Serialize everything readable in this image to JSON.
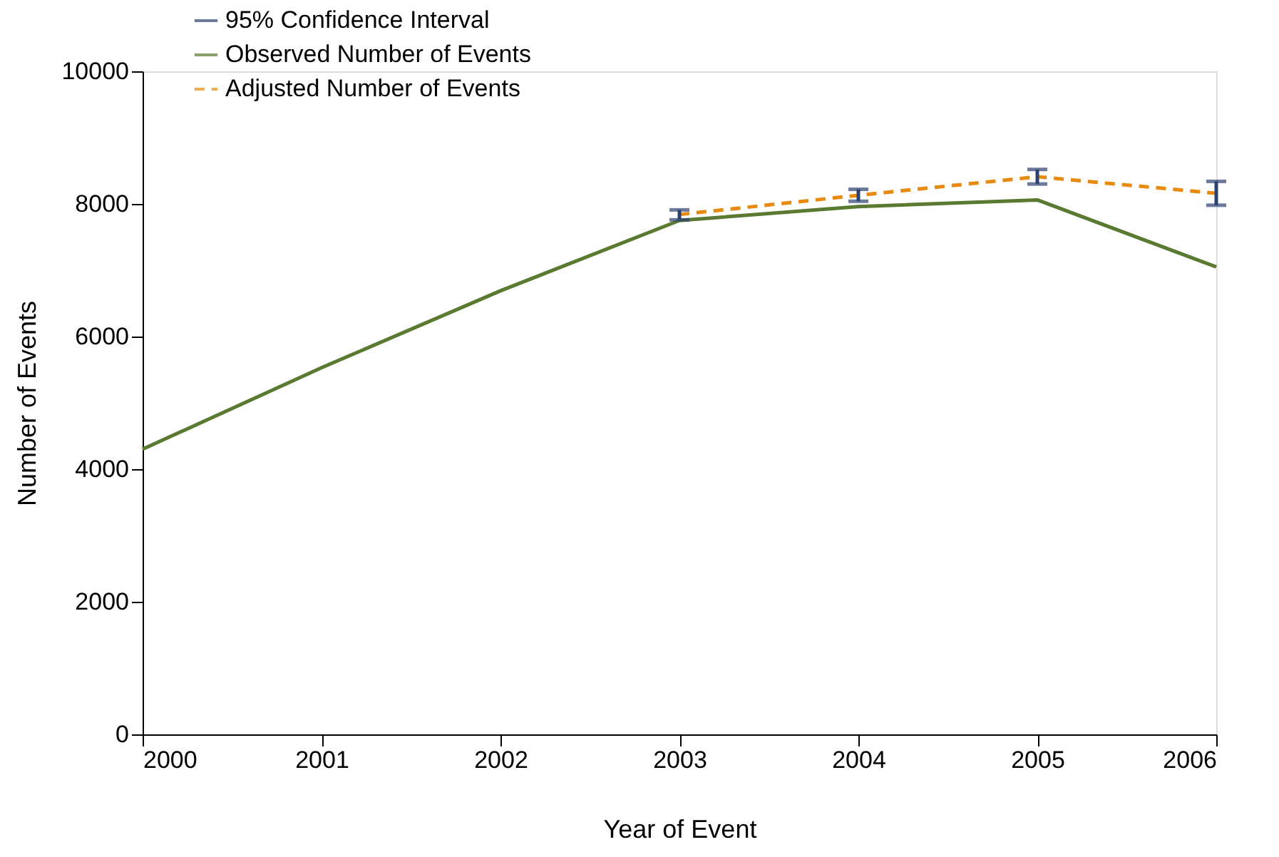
{
  "chart_data": {
    "type": "line",
    "xlabel": "Year of Event",
    "ylabel": "Number of Events",
    "x": [
      2000,
      2001,
      2002,
      2003,
      2004,
      2005,
      2006
    ],
    "xlim": [
      2000,
      2006
    ],
    "xticks": [
      2000,
      2001,
      2002,
      2003,
      2004,
      2005,
      2006
    ],
    "ylim": [
      0,
      10000
    ],
    "yticks": [
      0,
      2000,
      4000,
      6000,
      8000,
      10000
    ],
    "grid": false,
    "legend": "top left",
    "marker": "none",
    "annotations": [
      "95% Confidence Interval"
    ],
    "series": [
      {
        "name": "Observed Number of Events",
        "color": "#5a7a32",
        "line_style": "solid",
        "values": [
          4300,
          5530,
          6690,
          7750,
          7960,
          8060,
          7050
        ]
      },
      {
        "name": "Adjusted Number of Events",
        "color": "#e88a10",
        "line_style": "dashed",
        "values": [
          null,
          null,
          null,
          7840,
          8130,
          8410,
          8160
        ],
        "errors": [
          null,
          null,
          null,
          [
            7760,
            7910
          ],
          [
            8040,
            8220
          ],
          [
            8300,
            8520
          ],
          [
            7980,
            8340
          ]
        ]
      }
    ]
  }
}
